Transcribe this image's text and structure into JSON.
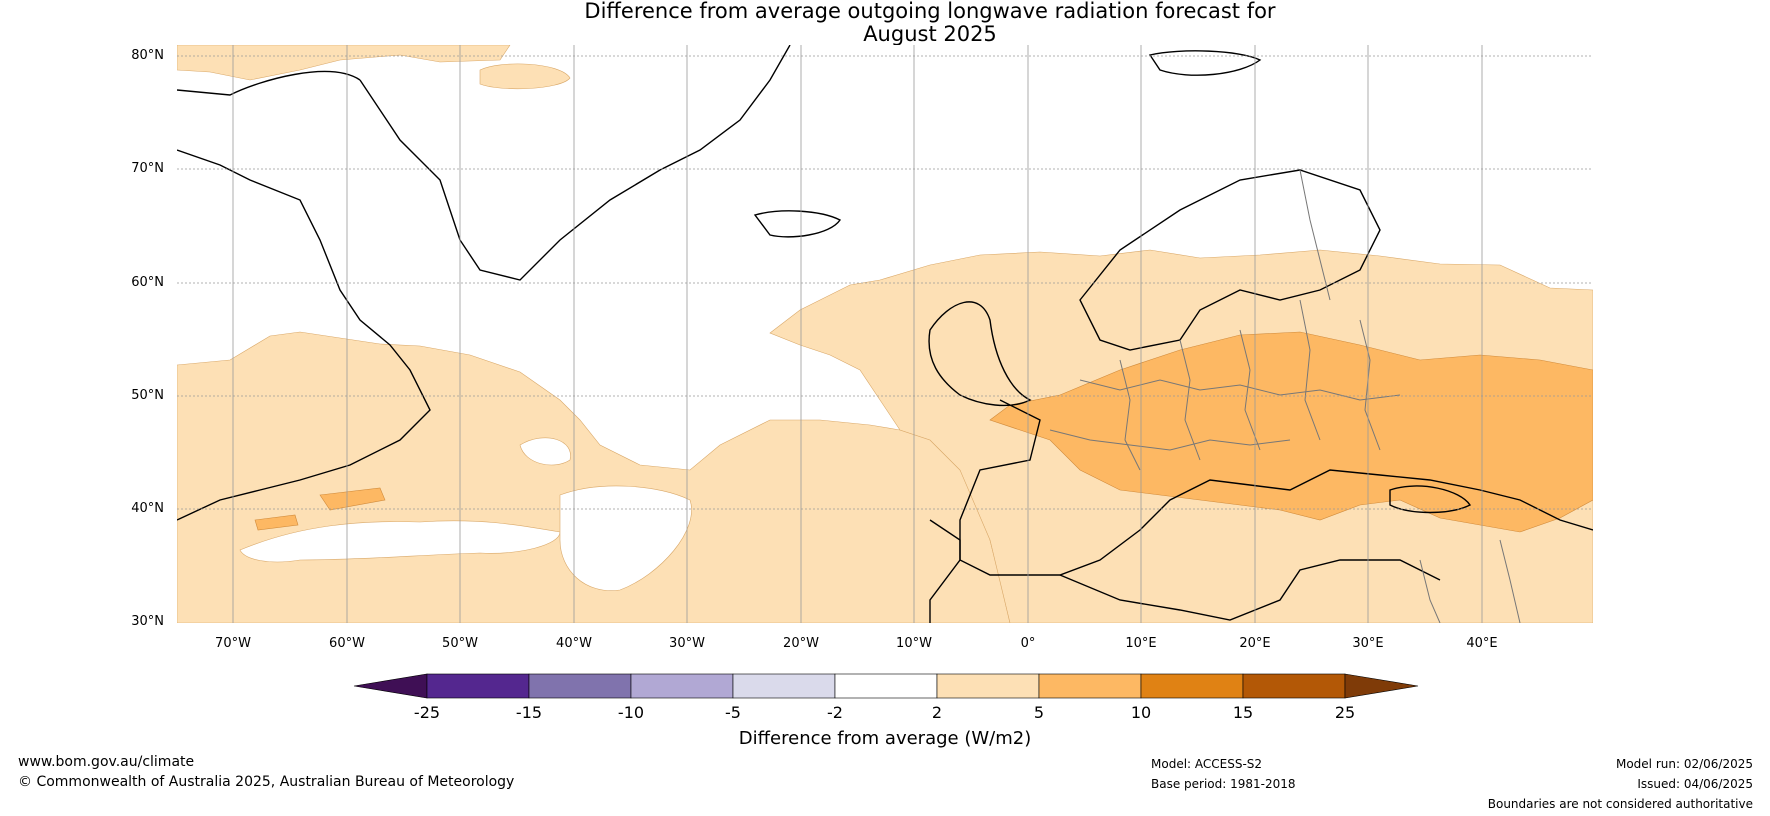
{
  "title": {
    "line1": "Difference from average outgoing longwave radiation forecast for",
    "line2": "August 2025"
  },
  "map": {
    "lat_labels": [
      "80°N",
      "70°N",
      "60°N",
      "50°N",
      "40°N",
      "30°N"
    ],
    "lon_labels": [
      "70°W",
      "60°W",
      "50°W",
      "40°W",
      "30°W",
      "20°W",
      "10°W",
      "0°",
      "10°E",
      "20°E",
      "30°E",
      "40°E"
    ]
  },
  "colorbar": {
    "ticks": [
      "-25",
      "-15",
      "-10",
      "-5",
      "-2",
      "2",
      "5",
      "10",
      "15",
      "25"
    ],
    "colors": [
      "#3f0f55",
      "#54278f",
      "#8073ad",
      "#b1a8d4",
      "#dadaeb",
      "#ffffff",
      "#fde0b5",
      "#fdb863",
      "#e08214",
      "#b35806",
      "#7f3b08"
    ],
    "label": "Difference from average (W/m2)"
  },
  "footer": {
    "website": "www.bom.gov.au/climate",
    "copyright": "© Commonwealth of Australia 2025, Australian Bureau of Meteorology",
    "model": "Model: ACCESS-S2",
    "base_period": "Base period: 1981-2018",
    "model_run": "Model run: 02/06/2025",
    "issued": "Issued: 04/06/2025",
    "disclaimer": "Boundaries are not considered authoritative"
  }
}
